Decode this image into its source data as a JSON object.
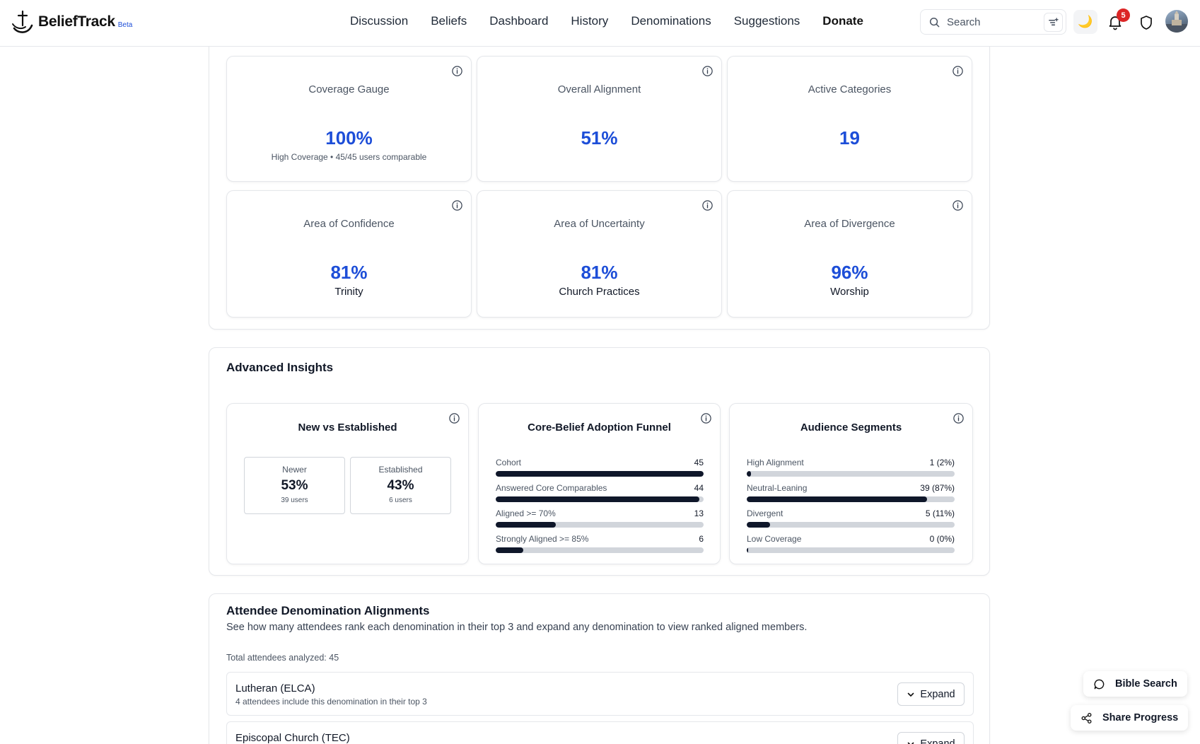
{
  "header": {
    "brand": "BeliefTrack",
    "beta": "Beta",
    "nav": [
      "Discussion",
      "Beliefs",
      "Dashboard",
      "History",
      "Denominations",
      "Suggestions",
      "Donate"
    ],
    "search_placeholder": "Search",
    "notifications_count": "5"
  },
  "stats": {
    "coverage": {
      "title": "Coverage Gauge",
      "value": "100%",
      "sub": "High Coverage • 45/45 users comparable"
    },
    "alignment": {
      "title": "Overall Alignment",
      "value": "51%"
    },
    "categories": {
      "title": "Active Categories",
      "value": "19"
    },
    "confidence": {
      "title": "Area of Confidence",
      "value": "81%",
      "sub": "Trinity"
    },
    "uncertainty": {
      "title": "Area of Uncertainty",
      "value": "81%",
      "sub": "Church Practices"
    },
    "divergence": {
      "title": "Area of Divergence",
      "value": "96%",
      "sub": "Worship"
    }
  },
  "insights": {
    "heading": "Advanced Insights",
    "new_vs_established": {
      "title": "New vs Established",
      "newer": {
        "label": "Newer",
        "pct": "53%",
        "count": "39 users"
      },
      "established": {
        "label": "Established",
        "pct": "43%",
        "count": "6 users"
      }
    },
    "funnel": {
      "title": "Core-Belief Adoption Funnel",
      "rows": [
        {
          "label": "Cohort",
          "value": "45",
          "fraction": 1.0
        },
        {
          "label": "Answered Core Comparables",
          "value": "44",
          "fraction": 0.978
        },
        {
          "label": "Aligned >= 70%",
          "value": "13",
          "fraction": 0.289
        },
        {
          "label": "Strongly Aligned >= 85%",
          "value": "6",
          "fraction": 0.133
        }
      ]
    },
    "segments": {
      "title": "Audience Segments",
      "rows": [
        {
          "label": "High Alignment",
          "value": "1 (2%)",
          "fraction": 0.022
        },
        {
          "label": "Neutral-Leaning",
          "value": "39 (87%)",
          "fraction": 0.867
        },
        {
          "label": "Divergent",
          "value": "5 (11%)",
          "fraction": 0.111
        },
        {
          "label": "Low Coverage",
          "value": "0 (0%)",
          "fraction": 0.0
        }
      ]
    }
  },
  "denominations": {
    "heading": "Attendee Denomination Alignments",
    "description": "See how many attendees rank each denomination in their top 3 and expand any denomination to view ranked aligned members.",
    "total": "Total attendees analyzed: 45",
    "expand_label": "Expand",
    "items": [
      {
        "name": "Lutheran (ELCA)",
        "detail": "4 attendees include this denomination in their top 3"
      },
      {
        "name": "Episcopal Church (TEC)",
        "detail": ""
      }
    ]
  },
  "floating": {
    "bible_search": "Bible Search",
    "share_progress": "Share Progress"
  },
  "colors": {
    "accent": "#1d4ed8",
    "bar_fill": "#0f172a",
    "bar_track": "#d1d5db",
    "badge": "#dc2626"
  }
}
